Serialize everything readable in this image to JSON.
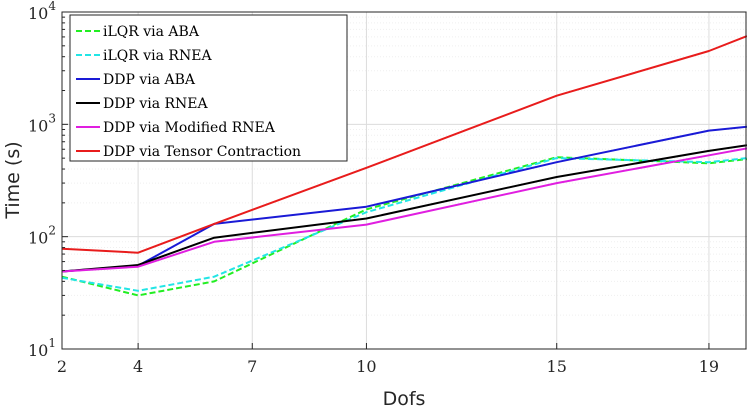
{
  "chart_data": {
    "type": "line",
    "title": "",
    "xlabel": "Dofs",
    "ylabel": "Time (s)",
    "x_scale": "linear",
    "y_scale": "log",
    "xlim": [
      2,
      20
    ],
    "ylim": [
      10,
      10000
    ],
    "x_ticks": [
      2,
      4,
      7,
      10,
      15,
      19
    ],
    "x_tick_labels": [
      "2",
      "4",
      "7",
      "10",
      "15",
      "19"
    ],
    "y_ticks": [
      10,
      100,
      1000,
      10000
    ],
    "y_tick_labels": [
      {
        "base": "10",
        "exp": "1"
      },
      {
        "base": "10",
        "exp": "2"
      },
      {
        "base": "10",
        "exp": "3"
      },
      {
        "base": "10",
        "exp": "4"
      }
    ],
    "grid": true,
    "legend_position": "top-left",
    "series": [
      {
        "name": "iLQR via ABA",
        "color": "#22ee22",
        "dash": "dashed",
        "x": [
          2,
          4,
          6,
          10,
          15,
          19,
          20
        ],
        "y": [
          44,
          30,
          40,
          175,
          510,
          450,
          490
        ]
      },
      {
        "name": "iLQR via RNEA",
        "color": "#22e5e5",
        "dash": "dashed",
        "x": [
          2,
          4,
          6,
          10,
          15,
          19,
          20
        ],
        "y": [
          43,
          33,
          44,
          165,
          500,
          460,
          500
        ]
      },
      {
        "name": "DDP via ABA",
        "color": "#1a1ad6",
        "dash": "solid",
        "x": [
          2,
          4,
          6,
          10,
          15,
          19,
          20
        ],
        "y": [
          49,
          55,
          130,
          185,
          460,
          880,
          950
        ]
      },
      {
        "name": "DDP via RNEA",
        "color": "#000000",
        "dash": "solid",
        "x": [
          2,
          4,
          6,
          10,
          15,
          19,
          20
        ],
        "y": [
          49,
          56,
          98,
          145,
          340,
          580,
          650
        ]
      },
      {
        "name": "DDP via Modified RNEA",
        "color": "#e01ee0",
        "dash": "solid",
        "x": [
          2,
          4,
          6,
          10,
          15,
          19,
          20
        ],
        "y": [
          49,
          54,
          90,
          128,
          300,
          530,
          610
        ]
      },
      {
        "name": "DDP via Tensor Contraction",
        "color": "#e81c1c",
        "dash": "solid",
        "x": [
          2,
          4,
          6,
          10,
          15,
          19,
          20
        ],
        "y": [
          78,
          72,
          130,
          410,
          1800,
          4500,
          6100
        ]
      }
    ]
  }
}
